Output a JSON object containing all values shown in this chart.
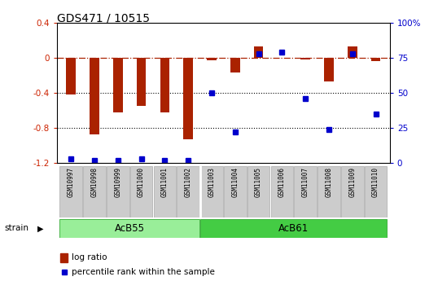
{
  "title": "GDS471 / 10515",
  "samples": [
    "GSM10997",
    "GSM10998",
    "GSM10999",
    "GSM11000",
    "GSM11001",
    "GSM11002",
    "GSM11003",
    "GSM11004",
    "GSM11005",
    "GSM11006",
    "GSM11007",
    "GSM11008",
    "GSM11009",
    "GSM11010"
  ],
  "log_ratio": [
    -0.42,
    -0.87,
    -0.62,
    -0.55,
    -0.62,
    -0.93,
    -0.03,
    -0.17,
    0.13,
    0.0,
    -0.02,
    -0.27,
    0.13,
    -0.04
  ],
  "percentile": [
    3,
    2,
    2,
    3,
    2,
    2,
    50,
    22,
    78,
    79,
    46,
    24,
    78,
    35
  ],
  "groups": [
    {
      "label": "AcB55",
      "start": 0,
      "end": 5,
      "color": "#99ee99"
    },
    {
      "label": "AcB61",
      "start": 6,
      "end": 13,
      "color": "#44cc44"
    }
  ],
  "bar_color": "#aa2200",
  "dot_color": "#0000cc",
  "ylim_left": [
    -1.2,
    0.4
  ],
  "ylim_right": [
    0,
    100
  ],
  "dotted_lines": [
    -0.4,
    -0.8
  ],
  "plot_bg": "#ffffff",
  "legend_items": [
    {
      "label": "log ratio",
      "color": "#aa2200"
    },
    {
      "label": "percentile rank within the sample",
      "color": "#0000cc"
    }
  ]
}
